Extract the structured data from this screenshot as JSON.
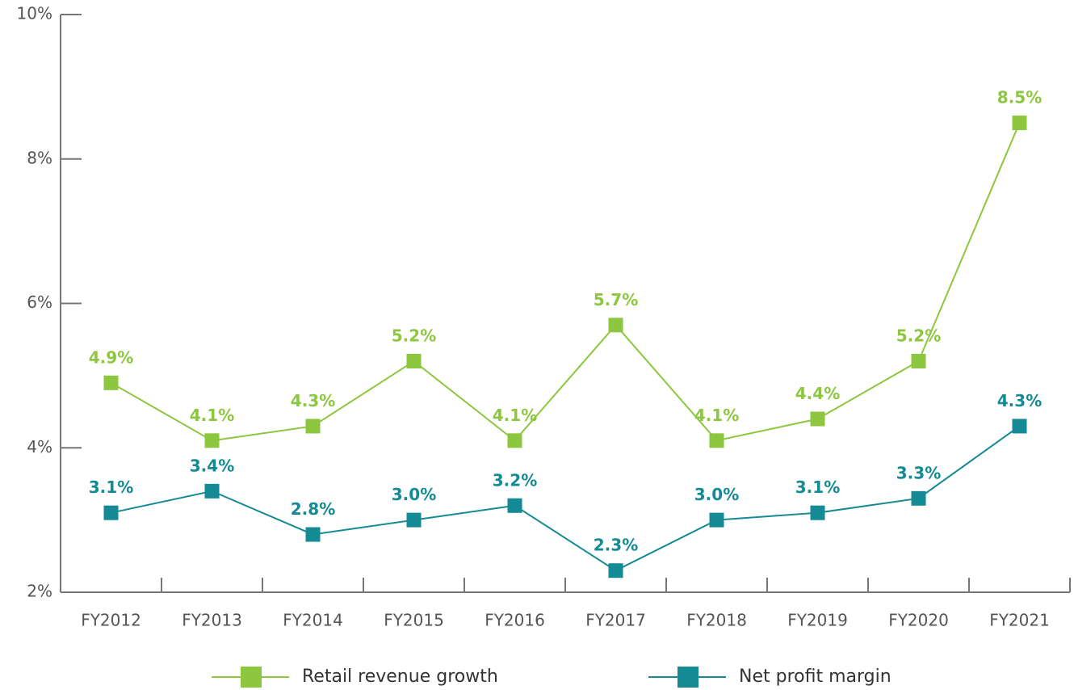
{
  "chart_data": {
    "type": "line",
    "categories": [
      "FY2012",
      "FY2013",
      "FY2014",
      "FY2015",
      "FY2016",
      "FY2017",
      "FY2018",
      "FY2019",
      "FY2020",
      "FY2021"
    ],
    "series": [
      {
        "name": "Retail revenue growth",
        "color": "#8dc63f",
        "values": [
          4.9,
          4.1,
          4.3,
          5.2,
          4.1,
          5.7,
          4.1,
          4.4,
          5.2,
          8.5
        ],
        "value_labels": [
          "4.9%",
          "4.1%",
          "4.3%",
          "5.2%",
          "4.1%",
          "5.7%",
          "4.1%",
          "4.4%",
          "5.2%",
          "8.5%"
        ]
      },
      {
        "name": "Net profit margin",
        "color": "#138a94",
        "values": [
          3.1,
          3.4,
          2.8,
          3.0,
          3.2,
          2.3,
          3.0,
          3.1,
          3.3,
          4.3
        ],
        "value_labels": [
          "3.1%",
          "3.4%",
          "2.8%",
          "3.0%",
          "3.2%",
          "2.3%",
          "3.0%",
          "3.1%",
          "3.3%",
          "4.3%"
        ]
      }
    ],
    "ylim": [
      2,
      10
    ],
    "yticks": [
      {
        "value": 2,
        "label": "2%"
      },
      {
        "value": 4,
        "label": "4%"
      },
      {
        "value": 6,
        "label": "6%"
      },
      {
        "value": 8,
        "label": "8%"
      },
      {
        "value": 10,
        "label": "10%"
      }
    ],
    "legend": "bottom"
  }
}
